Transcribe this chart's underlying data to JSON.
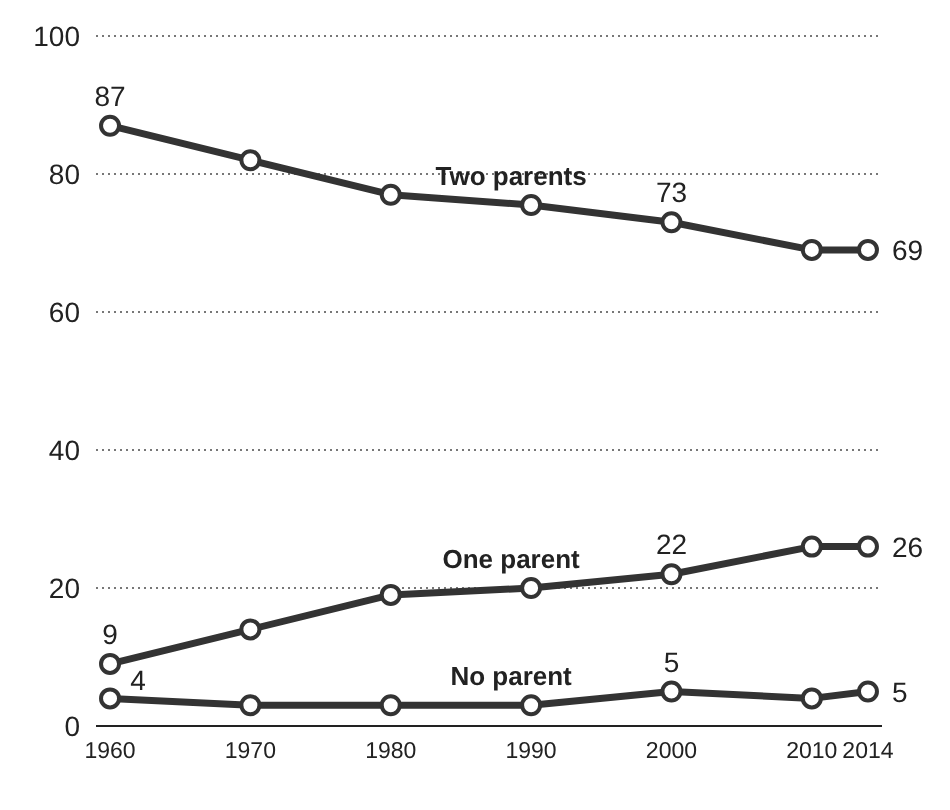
{
  "chart_data": {
    "type": "line",
    "x": [
      1960,
      1970,
      1980,
      1990,
      2000,
      2010,
      2014
    ],
    "series": [
      {
        "name": "Two parents",
        "color": "#333333",
        "values": [
          87,
          82,
          77,
          75.5,
          73,
          69,
          69
        ],
        "value_labels": [
          "87",
          null,
          null,
          null,
          "73",
          null,
          "69"
        ]
      },
      {
        "name": "One parent",
        "color": "#333333",
        "values": [
          9,
          14,
          19,
          20,
          22,
          26,
          26
        ],
        "value_labels": [
          "9",
          null,
          null,
          null,
          "22",
          null,
          "26"
        ]
      },
      {
        "name": "No parent",
        "color": "#333333",
        "values": [
          4,
          3,
          3,
          3,
          5,
          4,
          5
        ],
        "value_labels": [
          "4",
          null,
          null,
          null,
          "5",
          null,
          "5"
        ]
      }
    ],
    "xlim": [
      1959,
      2015
    ],
    "xticks": [
      1960,
      1970,
      1980,
      1990,
      2000,
      2010,
      2014
    ],
    "ylim": [
      0,
      100
    ],
    "yticks": [
      0,
      20,
      40,
      60,
      80,
      100
    ],
    "grid": "y",
    "marker": "circle",
    "line_style": "solid",
    "legend": false
  }
}
